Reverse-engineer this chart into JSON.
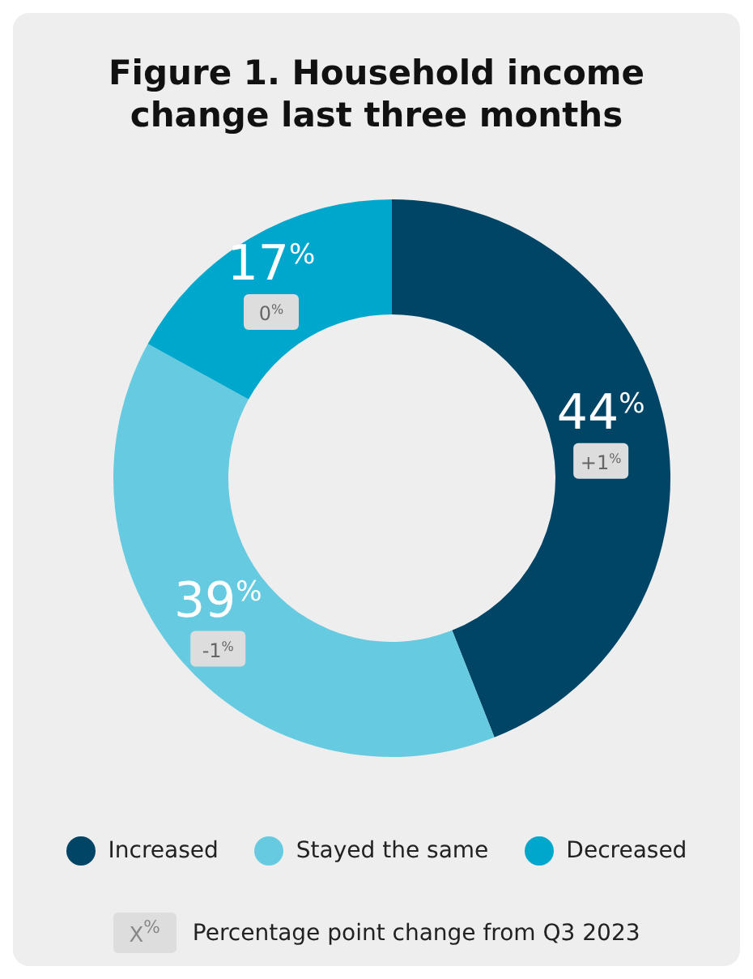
{
  "chart_data": {
    "type": "donut",
    "title": "Figure 1. Household income change last three months",
    "categories": [
      "Increased",
      "Stayed the same",
      "Decreased"
    ],
    "values": [
      44,
      39,
      17
    ],
    "colors": [
      "#004466",
      "#66cbe0",
      "#00a7cc"
    ],
    "value_labels": [
      "44$^{%}$",
      "39$^{%}$",
      "17$^{%}$"
    ],
    "annotations": [
      "+1$^{%}$",
      "-1$^{%}$",
      "0$^{%}$",
      "X$^{%}$",
      "Percentage point change from Q3 2023"
    ],
    "legend": "bottom"
  }
}
